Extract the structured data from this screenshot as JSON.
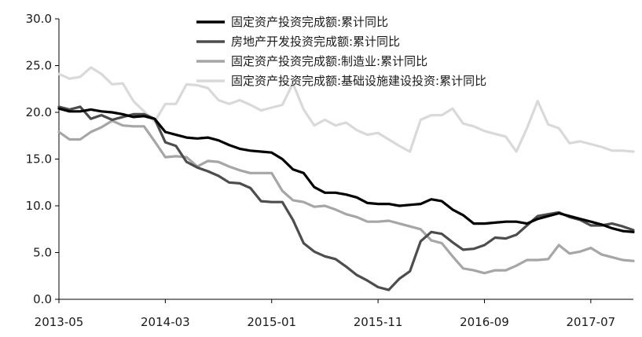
{
  "chart_data": {
    "type": "line",
    "title": "",
    "xlabel": "",
    "ylabel": "",
    "ylim": [
      0,
      30
    ],
    "yticks": [
      "0.0",
      "5.0",
      "10.0",
      "15.0",
      "20.0",
      "25.0",
      "30.0"
    ],
    "xticks": [
      {
        "i": 0,
        "label": "2013-05"
      },
      {
        "i": 10,
        "label": "2014-03"
      },
      {
        "i": 20,
        "label": "2015-01"
      },
      {
        "i": 30,
        "label": "2015-11"
      },
      {
        "i": 40,
        "label": "2016-09"
      },
      {
        "i": 50,
        "label": "2017-07"
      }
    ],
    "n_points": 55,
    "grid": false,
    "legend_position": "top-right",
    "series": [
      {
        "name": "固定资产投资完成额:累计同比",
        "color": "#000000",
        "width": 3.2,
        "values": [
          20.4,
          20.1,
          20.1,
          20.3,
          20.1,
          20.0,
          19.8,
          19.5,
          19.6,
          19.3,
          17.9,
          17.6,
          17.3,
          17.2,
          17.3,
          17.0,
          16.5,
          16.1,
          15.9,
          15.8,
          15.7,
          15.0,
          13.9,
          13.5,
          12.0,
          11.4,
          11.4,
          11.2,
          10.9,
          10.3,
          10.2,
          10.2,
          10.0,
          10.1,
          10.2,
          10.7,
          10.5,
          9.6,
          9.0,
          8.1,
          8.1,
          8.2,
          8.3,
          8.3,
          8.1,
          8.6,
          8.9,
          9.2,
          8.9,
          8.6,
          8.3,
          8.0,
          7.6,
          7.3,
          7.2
        ]
      },
      {
        "name": "房地产开发投资完成额:累计同比",
        "color": "#4d4d4d",
        "width": 3.2,
        "values": [
          20.6,
          20.3,
          20.6,
          19.3,
          19.7,
          19.2,
          19.5,
          19.8,
          19.8,
          19.3,
          16.8,
          16.4,
          14.7,
          14.1,
          13.7,
          13.2,
          12.5,
          12.4,
          11.9,
          10.5,
          10.4,
          10.4,
          8.5,
          6.0,
          5.1,
          4.6,
          4.3,
          3.5,
          2.6,
          2.0,
          1.3,
          1.0,
          2.2,
          3.0,
          6.2,
          7.2,
          7.0,
          6.1,
          5.3,
          5.4,
          5.8,
          6.6,
          6.5,
          6.9,
          7.9,
          8.9,
          9.1,
          9.3,
          8.8,
          8.5,
          7.9,
          7.9,
          8.1,
          7.8,
          7.4
        ]
      },
      {
        "name": "固定资产投资完成额:制造业:累计同比",
        "color": "#a6a6a6",
        "width": 3.2,
        "values": [
          17.9,
          17.1,
          17.1,
          17.9,
          18.4,
          19.1,
          18.6,
          18.5,
          18.5,
          16.9,
          15.2,
          15.3,
          15.2,
          14.2,
          14.8,
          14.7,
          14.2,
          13.8,
          13.5,
          13.5,
          13.5,
          11.6,
          10.6,
          10.4,
          9.9,
          10.0,
          9.6,
          9.1,
          8.8,
          8.3,
          8.3,
          8.4,
          8.1,
          7.8,
          7.5,
          6.3,
          6.0,
          4.6,
          3.3,
          3.1,
          2.8,
          3.1,
          3.1,
          3.6,
          4.2,
          4.2,
          4.3,
          5.8,
          4.9,
          5.1,
          5.5,
          4.8,
          4.5,
          4.2,
          4.1
        ]
      },
      {
        "name": "固定资产投资完成额:基础设施建设投资:累计同比",
        "color": "#d9d9d9",
        "width": 3.2,
        "values": [
          24.1,
          23.6,
          23.8,
          24.8,
          24.1,
          23.0,
          23.1,
          21.2,
          20.1,
          19.0,
          20.9,
          20.9,
          23.0,
          22.9,
          22.6,
          21.3,
          20.9,
          21.3,
          20.8,
          20.2,
          20.5,
          20.8,
          23.1,
          20.3,
          18.6,
          19.2,
          18.6,
          18.9,
          18.1,
          17.6,
          17.8,
          17.1,
          16.4,
          15.8,
          19.2,
          19.7,
          19.7,
          20.4,
          18.8,
          18.5,
          18.0,
          17.7,
          17.4,
          15.8,
          18.3,
          21.2,
          18.7,
          18.3,
          16.7,
          16.9,
          16.6,
          16.3,
          15.9,
          15.9,
          15.8
        ]
      }
    ]
  }
}
